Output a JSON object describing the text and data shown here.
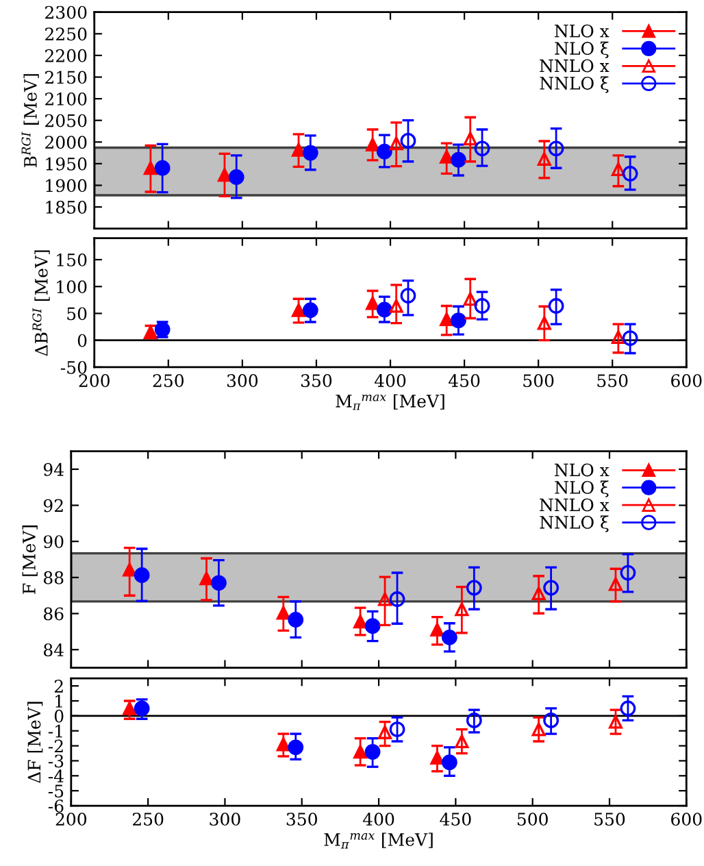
{
  "chart_data": [
    {
      "type": "scatter",
      "ylabel": "B$^{RGI}$ [MeV]",
      "xlim": [
        200,
        600
      ],
      "xticks": [
        200,
        250,
        300,
        350,
        400,
        450,
        500,
        550,
        600
      ],
      "ylim": [
        1800,
        2300
      ],
      "yticks": [
        1850,
        1900,
        1950,
        2000,
        2050,
        2100,
        2150,
        2200,
        2250,
        2300
      ],
      "tick_labels": "y",
      "legend": "top right",
      "grid": false,
      "bands": [
        {
          "axis": "y",
          "from": 1877,
          "to": 1987,
          "color": "#c0c0c0"
        }
      ],
      "series": [
        {
          "name": "NLO x",
          "color": "#ff0000",
          "marker": "triangle",
          "x": [
            238,
            288,
            338,
            388,
            438
          ],
          "values": [
            1940,
            1924,
            1982,
            1994,
            1966
          ],
          "errors": [
            [
              1885,
              1992
            ],
            [
              1875,
              1973
            ],
            [
              1943,
              2018
            ],
            [
              1958,
              2029
            ],
            [
              1927,
              1997
            ]
          ]
        },
        {
          "name": "NLO ξ",
          "color": "#0000ff",
          "marker": "circle",
          "x": [
            246,
            296,
            346,
            396,
            446
          ],
          "values": [
            1940,
            1919,
            1975,
            1978,
            1959
          ],
          "errors": [
            [
              1884,
              1995
            ],
            [
              1871,
              1969
            ],
            [
              1936,
              2015
            ],
            [
              1942,
              2016
            ],
            [
              1923,
              1994
            ]
          ]
        },
        {
          "name": "NNLO x",
          "color": "#ff0000",
          "marker": "triangle",
          "x": [
            404,
            454,
            504,
            554
          ],
          "values": [
            1997,
            2008,
            1961,
            1937
          ],
          "errors": [
            [
              1944,
              2045
            ],
            [
              1955,
              2057
            ],
            [
              1917,
              2002
            ],
            [
              1898,
              1969
            ]
          ]
        },
        {
          "name": "NNLO ξ",
          "color": "#0000ff",
          "marker": "circle",
          "x": [
            412,
            462,
            512,
            562
          ],
          "values": [
            2003,
            1985,
            1985,
            1927
          ],
          "errors": [
            [
              1955,
              2050
            ],
            [
              1945,
              2029
            ],
            [
              1940,
              2031
            ],
            [
              1890,
              1966
            ]
          ]
        }
      ]
    },
    {
      "type": "scatter",
      "xlabel": "M$_{π}$$^{max}$ [MeV]",
      "ylabel": "ΔB$^{RGI}$ [MeV]",
      "xlim": [
        200,
        600
      ],
      "xticks": [
        200,
        250,
        300,
        350,
        400,
        450,
        500,
        550,
        600
      ],
      "ylim": [
        -50,
        190
      ],
      "yticks": [
        -50,
        0,
        50,
        100,
        150
      ],
      "grid": false,
      "ref_lines": [
        {
          "axis": "y",
          "value": 0,
          "color": "#000000"
        }
      ],
      "series": [
        {
          "color": "#ff0000",
          "marker": "triangle",
          "x": [
            238,
            338,
            388,
            438
          ],
          "values": [
            15,
            56,
            69,
            39
          ],
          "errors": [
            [
              4,
              27
            ],
            [
              33,
              77
            ],
            [
              43,
              92
            ],
            [
              10,
              64
            ]
          ]
        },
        {
          "color": "#0000ff",
          "marker": "circle",
          "x": [
            246,
            346,
            396,
            446
          ],
          "values": [
            20,
            56,
            57,
            37
          ],
          "errors": [
            [
              6,
              34
            ],
            [
              34,
              77
            ],
            [
              34,
              81
            ],
            [
              11,
              63
            ]
          ]
        },
        {
          "color": "#ff0000",
          "marker": "triangle",
          "x": [
            404,
            454,
            504,
            554
          ],
          "values": [
            64,
            77,
            32,
            6
          ],
          "errors": [
            [
              32,
              103
            ],
            [
              41,
              114
            ],
            [
              0,
              63
            ],
            [
              -23,
              30
            ]
          ]
        },
        {
          "color": "#0000ff",
          "marker": "circle",
          "x": [
            412,
            462,
            512,
            562
          ],
          "values": [
            83,
            64,
            64,
            4
          ],
          "errors": [
            [
              47,
              111
            ],
            [
              39,
              90
            ],
            [
              30,
              94
            ],
            [
              -24,
              30
            ]
          ]
        }
      ]
    },
    {
      "type": "scatter",
      "ylabel": "F [MeV]",
      "xlim": [
        200,
        600
      ],
      "xticks": [
        200,
        250,
        300,
        350,
        400,
        450,
        500,
        550,
        600
      ],
      "ylim": [
        83,
        95
      ],
      "yticks": [
        84,
        86,
        88,
        90,
        92,
        94
      ],
      "tick_labels": "y",
      "legend": "top right",
      "grid": false,
      "bands": [
        {
          "axis": "y",
          "from": 86.67,
          "to": 89.34,
          "color": "#c0c0c0"
        }
      ],
      "series": [
        {
          "name": "NLO x",
          "color": "#ff0000",
          "marker": "triangle",
          "x": [
            238,
            288,
            338,
            388,
            438
          ],
          "values": [
            88.43,
            87.95,
            86.04,
            85.56,
            85.11
          ],
          "errors": [
            [
              87.0,
              89.64
            ],
            [
              86.75,
              89.06
            ],
            [
              85.06,
              86.92
            ],
            [
              84.81,
              86.32
            ],
            [
              84.28,
              85.81
            ]
          ]
        },
        {
          "name": "NLO ξ",
          "color": "#0000ff",
          "marker": "circle",
          "x": [
            246,
            296,
            346,
            396,
            446
          ],
          "values": [
            88.13,
            87.7,
            85.66,
            85.31,
            84.68
          ],
          "errors": [
            [
              86.7,
              89.59
            ],
            [
              86.44,
              88.96
            ],
            [
              84.68,
              86.67
            ],
            [
              84.48,
              86.12
            ],
            [
              83.9,
              85.46
            ]
          ]
        },
        {
          "name": "NNLO x",
          "color": "#ff0000",
          "marker": "triangle",
          "x": [
            404,
            454,
            504,
            554
          ],
          "values": [
            86.8,
            86.24,
            87.12,
            87.63
          ],
          "errors": [
            [
              85.36,
              88.03
            ],
            [
              84.93,
              87.48
            ],
            [
              86.01,
              88.08
            ],
            [
              86.67,
              88.48
            ]
          ]
        },
        {
          "name": "NNLO ξ",
          "color": "#0000ff",
          "marker": "circle",
          "x": [
            412,
            462,
            512,
            562
          ],
          "values": [
            86.8,
            87.43,
            87.43,
            88.26
          ],
          "errors": [
            [
              85.44,
              88.26
            ],
            [
              86.24,
              88.56
            ],
            [
              86.24,
              88.56
            ],
            [
              87.2,
              89.29
            ]
          ]
        }
      ]
    },
    {
      "type": "scatter",
      "xlabel": "M$_{π}$$^{max}$ [MeV]",
      "ylabel": "ΔF [MeV]",
      "xlim": [
        200,
        600
      ],
      "xticks": [
        200,
        250,
        300,
        350,
        400,
        450,
        500,
        550,
        600
      ],
      "ylim": [
        -6,
        2.5
      ],
      "yticks": [
        -6,
        -5,
        -4,
        -3,
        -2,
        -1,
        0,
        1,
        2
      ],
      "grid": false,
      "ref_lines": [
        {
          "axis": "y",
          "value": 0,
          "color": "#000000"
        }
      ],
      "series": [
        {
          "color": "#ff0000",
          "marker": "triangle",
          "x": [
            238,
            338,
            388,
            438
          ],
          "values": [
            0.5,
            -1.9,
            -2.4,
            -2.8
          ],
          "errors": [
            [
              -0.2,
              1.0
            ],
            [
              -2.7,
              -1.2
            ],
            [
              -3.3,
              -1.5
            ],
            [
              -3.7,
              -2.0
            ]
          ]
        },
        {
          "color": "#0000ff",
          "marker": "circle",
          "x": [
            246,
            346,
            396,
            446
          ],
          "values": [
            0.5,
            -2.1,
            -2.4,
            -3.1
          ],
          "errors": [
            [
              -0.2,
              1.1
            ],
            [
              -2.9,
              -1.2
            ],
            [
              -3.4,
              -1.5
            ],
            [
              -4.0,
              -2.1
            ]
          ]
        },
        {
          "color": "#ff0000",
          "marker": "triangle",
          "x": [
            404,
            454,
            504,
            554
          ],
          "values": [
            -1.1,
            -1.7,
            -0.9,
            -0.4
          ],
          "errors": [
            [
              -2.0,
              -0.4
            ],
            [
              -2.5,
              -0.9
            ],
            [
              -1.7,
              -0.1
            ],
            [
              -1.2,
              0.4
            ]
          ]
        },
        {
          "color": "#0000ff",
          "marker": "circle",
          "x": [
            412,
            462,
            512,
            562
          ],
          "values": [
            -0.9,
            -0.3,
            -0.3,
            0.5
          ],
          "errors": [
            [
              -1.7,
              -0.1
            ],
            [
              -1.1,
              0.4
            ],
            [
              -1.2,
              0.5
            ],
            [
              -0.3,
              1.3
            ]
          ]
        }
      ]
    }
  ]
}
